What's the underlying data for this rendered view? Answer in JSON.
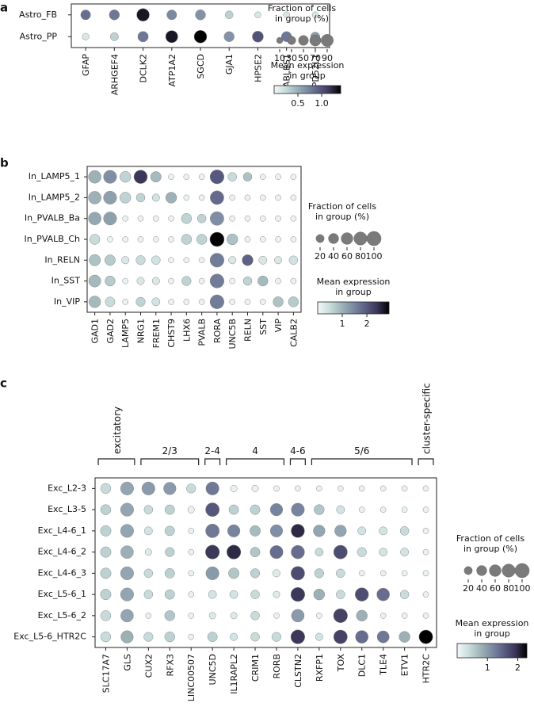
{
  "panels": [
    {
      "letter": "a",
      "chart_data": {
        "type": "dotplot",
        "rows": [
          "Astro_FB",
          "Astro_PP"
        ],
        "genes": [
          "GFAP",
          "ARHGEF4",
          "DCLK2",
          "ATP1A2",
          "SGCD",
          "GJA1",
          "HPSE2",
          "CABLES1",
          "TPD52L1"
        ],
        "fraction": [
          [
            50,
            55,
            100,
            50,
            55,
            25,
            10,
            10,
            10
          ],
          [
            15,
            28,
            60,
            90,
            100,
            55,
            70,
            55,
            40
          ]
        ],
        "expression": [
          [
            0.85,
            0.8,
            1.3,
            0.7,
            0.65,
            0.3,
            0.15,
            0.15,
            0.15
          ],
          [
            0.15,
            0.3,
            0.8,
            1.3,
            1.4,
            0.65,
            1.0,
            0.8,
            0.6
          ]
        ],
        "size_legend": {
          "title": "Fraction of cells\nin group (%)",
          "ticks": [
            "10",
            "30",
            "50",
            "70",
            "90"
          ]
        },
        "color_legend": {
          "title": "Mean expression\nin group",
          "ticks": [
            "0.5",
            "1.0"
          ],
          "range": [
            0,
            1.4
          ]
        }
      }
    },
    {
      "letter": "b",
      "chart_data": {
        "type": "dotplot",
        "rows": [
          "In_LAMP5_1",
          "In_LAMP5_2",
          "In_PVALB_Ba",
          "In_PVALB_Ch",
          "In_RELN",
          "In_SST",
          "In_VIP"
        ],
        "genes": [
          "GAD1",
          "GAD2",
          "LAMP5",
          "NRG1",
          "FREM1",
          "CHST9",
          "LHX6",
          "PVALB",
          "RORA",
          "UNC5B",
          "RELN",
          "SST",
          "VIP",
          "CALB2"
        ],
        "fraction": [
          [
            75,
            80,
            50,
            85,
            45,
            5,
            5,
            5,
            95,
            25,
            25,
            5,
            5,
            5
          ],
          [
            75,
            80,
            50,
            25,
            15,
            50,
            5,
            5,
            90,
            5,
            5,
            5,
            5,
            5
          ],
          [
            75,
            80,
            5,
            5,
            5,
            5,
            40,
            25,
            90,
            5,
            5,
            5,
            5,
            5
          ],
          [
            40,
            5,
            5,
            5,
            5,
            5,
            40,
            40,
            100,
            50,
            5,
            5,
            5,
            5
          ],
          [
            55,
            45,
            15,
            30,
            25,
            5,
            5,
            5,
            95,
            15,
            50,
            20,
            15,
            25
          ],
          [
            65,
            40,
            5,
            15,
            15,
            5,
            30,
            5,
            95,
            5,
            25,
            40,
            5,
            5
          ],
          [
            60,
            35,
            5,
            30,
            20,
            5,
            5,
            5,
            95,
            5,
            5,
            5,
            40,
            40
          ]
        ],
        "expression": [
          [
            1.0,
            1.4,
            0.6,
            2.4,
            0.9,
            0.1,
            0.1,
            0.1,
            2.0,
            0.5,
            0.8,
            0.1,
            0.1,
            0.1
          ],
          [
            1.0,
            1.2,
            0.6,
            0.6,
            0.4,
            1.0,
            0.1,
            0.1,
            1.8,
            0.1,
            0.1,
            0.1,
            0.1,
            0.1
          ],
          [
            1.1,
            1.2,
            0.1,
            0.1,
            0.1,
            0.1,
            0.6,
            0.6,
            1.4,
            0.1,
            0.1,
            0.1,
            0.1,
            0.1
          ],
          [
            0.5,
            0.1,
            0.1,
            0.1,
            0.1,
            0.1,
            0.6,
            0.6,
            2.9,
            0.8,
            0.1,
            0.1,
            0.1,
            0.1
          ],
          [
            0.8,
            0.7,
            0.3,
            0.5,
            0.4,
            0.1,
            0.1,
            0.1,
            1.6,
            0.3,
            1.9,
            0.3,
            0.3,
            0.4
          ],
          [
            0.9,
            0.7,
            0.1,
            0.3,
            0.3,
            0.1,
            0.6,
            0.1,
            1.6,
            0.1,
            0.6,
            0.9,
            0.1,
            0.1
          ],
          [
            0.9,
            0.5,
            0.1,
            0.6,
            0.4,
            0.1,
            0.1,
            0.1,
            1.6,
            0.1,
            0.1,
            0.1,
            0.8,
            0.7
          ]
        ],
        "size_legend": {
          "title": "Fraction of cells\nin group (%)",
          "ticks": [
            "20",
            "40",
            "60",
            "80",
            "100"
          ]
        },
        "color_legend": {
          "title": "Mean expression\nin group",
          "ticks": [
            "1",
            "2"
          ],
          "range": [
            0,
            2.9
          ]
        }
      }
    },
    {
      "letter": "c",
      "chart_data": {
        "type": "dotplot",
        "rows": [
          "Exc_L2-3",
          "Exc_L3-5",
          "Exc_L4-6_1",
          "Exc_L4-6_2",
          "Exc_L4-6_3",
          "Exc_L5-6_1",
          "Exc_L5-6_2",
          "Exc_L5-6_HTR2C"
        ],
        "genes": [
          "SLC17A7",
          "GLS",
          "CUX2",
          "RFX3",
          "LINC00507",
          "UNC5D",
          "IL1RAPL2",
          "CRIM1",
          "RORB",
          "CLSTN2",
          "RXFP1",
          "TOX",
          "DLC1",
          "TLE4",
          "ETV1",
          "HTR2C"
        ],
        "groups": [
          {
            "label": "excitatory",
            "start": 0,
            "end": 1
          },
          {
            "label": "2/3",
            "start": 2,
            "end": 4
          },
          {
            "label": "2-4",
            "start": 5,
            "end": 5
          },
          {
            "label": "4",
            "start": 6,
            "end": 8
          },
          {
            "label": "4-6",
            "start": 9,
            "end": 9
          },
          {
            "label": "5/6",
            "start": 10,
            "end": 14
          },
          {
            "label": "cluster-specific",
            "start": 15,
            "end": 15
          }
        ],
        "fraction": [
          [
            40,
            80,
            80,
            70,
            30,
            80,
            10,
            10,
            5,
            5,
            5,
            5,
            5,
            5,
            5,
            5
          ],
          [
            40,
            80,
            25,
            35,
            10,
            90,
            35,
            35,
            70,
            80,
            40,
            20,
            5,
            5,
            5,
            5
          ],
          [
            45,
            80,
            20,
            35,
            5,
            90,
            70,
            45,
            70,
            85,
            60,
            60,
            20,
            20,
            25,
            5
          ],
          [
            45,
            75,
            10,
            30,
            5,
            95,
            95,
            35,
            80,
            85,
            20,
            90,
            30,
            20,
            20,
            5
          ],
          [
            45,
            80,
            25,
            35,
            5,
            80,
            45,
            30,
            15,
            90,
            30,
            25,
            5,
            5,
            5,
            5
          ],
          [
            45,
            80,
            25,
            35,
            5,
            20,
            20,
            25,
            10,
            95,
            50,
            25,
            85,
            75,
            25,
            5
          ],
          [
            40,
            75,
            5,
            40,
            5,
            10,
            10,
            25,
            5,
            75,
            5,
            95,
            50,
            5,
            5,
            5
          ],
          [
            40,
            70,
            30,
            40,
            5,
            35,
            15,
            25,
            30,
            95,
            15,
            90,
            75,
            65,
            50,
            90
          ]
        ],
        "expression": [
          [
            0.4,
            0.9,
            1.0,
            1.0,
            0.4,
            1.3,
            0.1,
            0.1,
            0.1,
            0.1,
            0.1,
            0.1,
            0.1,
            0.1,
            0.1,
            0.1
          ],
          [
            0.5,
            0.9,
            0.4,
            0.5,
            0.1,
            1.6,
            0.5,
            0.5,
            1.2,
            1.2,
            0.6,
            0.3,
            0.1,
            0.1,
            0.1,
            0.1
          ],
          [
            0.5,
            0.9,
            0.3,
            0.5,
            0.1,
            1.3,
            1.2,
            0.7,
            1.1,
            2.0,
            0.9,
            0.9,
            0.3,
            0.3,
            0.4,
            0.1
          ],
          [
            0.5,
            0.8,
            0.2,
            0.5,
            0.1,
            1.9,
            2.0,
            0.6,
            1.4,
            1.4,
            0.4,
            1.7,
            0.4,
            0.3,
            0.3,
            0.1
          ],
          [
            0.5,
            0.9,
            0.4,
            0.5,
            0.1,
            1.0,
            0.6,
            0.5,
            0.2,
            1.7,
            0.5,
            0.4,
            0.1,
            0.1,
            0.1,
            0.1
          ],
          [
            0.5,
            0.9,
            0.4,
            0.5,
            0.1,
            0.3,
            0.3,
            0.4,
            0.2,
            1.9,
            0.8,
            0.4,
            1.7,
            1.4,
            0.4,
            0.1
          ],
          [
            0.4,
            0.9,
            0.1,
            0.6,
            0.1,
            0.2,
            0.2,
            0.4,
            0.1,
            1.0,
            0.1,
            1.8,
            0.8,
            0.1,
            0.1,
            0.1
          ],
          [
            0.4,
            0.8,
            0.4,
            0.5,
            0.1,
            0.5,
            0.3,
            0.4,
            0.4,
            1.9,
            0.3,
            1.8,
            1.4,
            1.3,
            0.8,
            2.3
          ]
        ],
        "size_legend": {
          "title": "Fraction of cells\nin group (%)",
          "ticks": [
            "20",
            "40",
            "60",
            "80",
            "100"
          ]
        },
        "color_legend": {
          "title": "Mean expression\nin group",
          "ticks": [
            "1",
            "2"
          ],
          "range": [
            0,
            2.3
          ]
        }
      }
    }
  ],
  "colormap": [
    "#f4f8f8",
    "#c9dddd",
    "#9fb4b8",
    "#7b8aa2",
    "#5c5e84",
    "#3a3658",
    "#000000"
  ]
}
